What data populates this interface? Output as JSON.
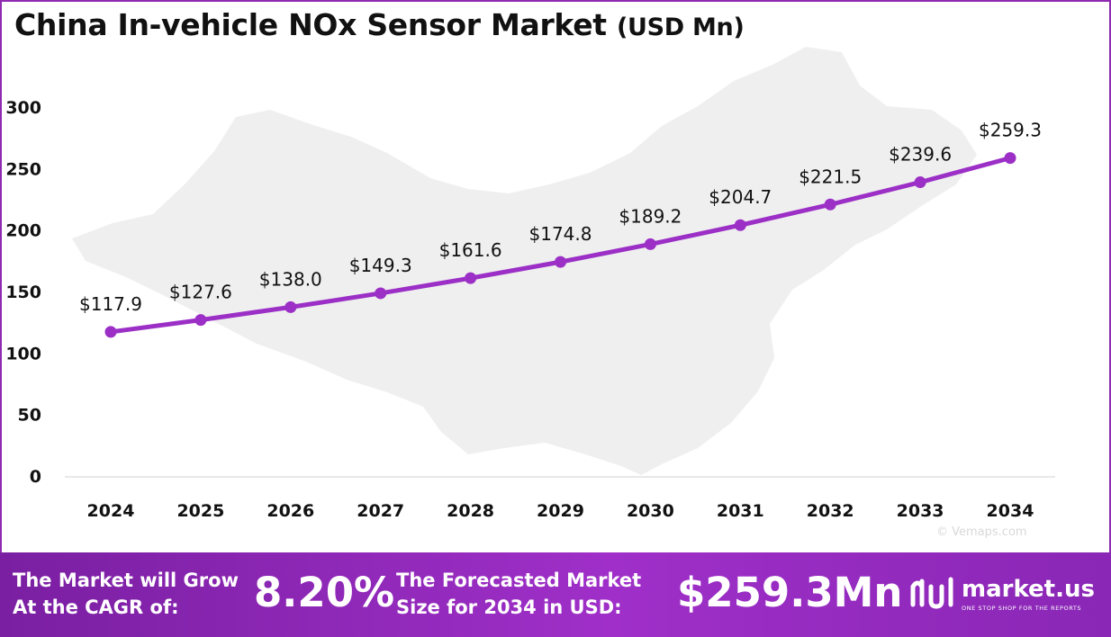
{
  "chart_data": {
    "type": "line",
    "title": "China In-vehicle NOx Sensor Market",
    "title_unit": "(USD Mn)",
    "categories": [
      "2024",
      "2025",
      "2026",
      "2027",
      "2028",
      "2029",
      "2030",
      "2031",
      "2032",
      "2033",
      "2034"
    ],
    "values": [
      117.9,
      127.6,
      138.0,
      149.3,
      161.6,
      174.8,
      189.2,
      204.7,
      221.5,
      239.6,
      259.3
    ],
    "data_labels": [
      "$117.9",
      "$127.6",
      "$138.0",
      "$149.3",
      "$161.6",
      "$174.8",
      "$189.2",
      "$204.7",
      "$221.5",
      "$239.6",
      "$259.3"
    ],
    "yticks": [
      0,
      50,
      100,
      150,
      200,
      250,
      300
    ],
    "ylim": [
      0,
      300
    ],
    "grid": false,
    "legend": "none",
    "line_color": "#9b2fc6"
  },
  "background": {
    "watermark": "© Vemaps.com",
    "map_color": "#efefef"
  },
  "footer": {
    "cagr_text_1": "The Market will Grow",
    "cagr_text_2": "At the CAGR of:",
    "cagr_value": "8.20%",
    "forecast_text_1": "The Forecasted Market",
    "forecast_text_2": "Size for 2034 in USD:",
    "forecast_value": "$259.3Mn",
    "brand": "market.us",
    "brand_tagline": "ONE STOP SHOP FOR THE REPORTS",
    "bg_color": "#8e2bb0"
  }
}
